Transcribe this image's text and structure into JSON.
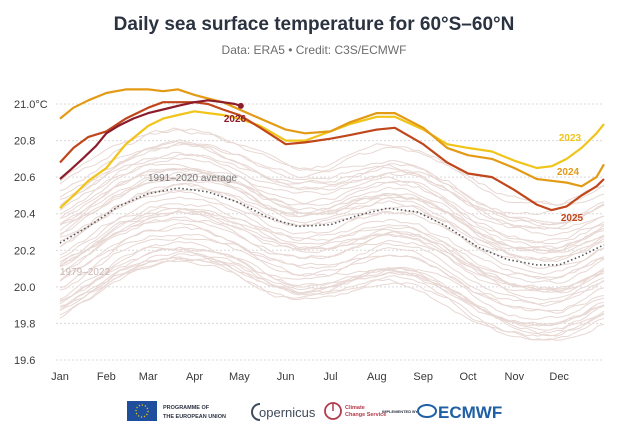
{
  "chart_data": {
    "type": "line",
    "title": "Daily sea surface temperature for 60°S–60°N",
    "subtitle": "Data: ERA5 • Credit: C3S/ECMWF",
    "ylabel": "",
    "xlabel": "",
    "ylim": [
      19.6,
      21.1
    ],
    "xlim": [
      1,
      365
    ],
    "y_ticks": [
      "21.0°C",
      "20.8",
      "20.6",
      "20.4",
      "20.2",
      "20.0",
      "19.8",
      "19.6"
    ],
    "y_tick_values": [
      21.0,
      20.8,
      20.6,
      20.4,
      20.2,
      20.0,
      19.8,
      19.6
    ],
    "x_ticks": [
      "Jan",
      "Feb",
      "Mar",
      "Apr",
      "May",
      "Jun",
      "Jul",
      "Aug",
      "Sep",
      "Oct",
      "Nov",
      "Dec"
    ],
    "x_tick_days": [
      1,
      32,
      60,
      91,
      121,
      152,
      182,
      213,
      244,
      274,
      305,
      335
    ],
    "grid": "horizontal",
    "annotations": {
      "average_label": "1991–2020 average",
      "background_label": "1979–2022"
    },
    "series": [
      {
        "name": "2023",
        "color": "#f0c419",
        "days": [
          1,
          10,
          20,
          32,
          45,
          60,
          70,
          80,
          91,
          100,
          110,
          121,
          135,
          152,
          165,
          182,
          195,
          213,
          225,
          244,
          260,
          274,
          290,
          305,
          320,
          330,
          340,
          350,
          360,
          365
        ],
        "values": [
          20.43,
          20.5,
          20.58,
          20.65,
          20.78,
          20.88,
          20.92,
          20.94,
          20.96,
          20.95,
          20.94,
          20.92,
          20.88,
          20.8,
          20.8,
          20.85,
          20.89,
          20.93,
          20.93,
          20.86,
          20.78,
          20.76,
          20.74,
          20.69,
          20.65,
          20.66,
          20.7,
          20.76,
          20.84,
          20.89
        ]
      },
      {
        "name": "2024",
        "color": "#e39a15",
        "days": [
          1,
          10,
          20,
          32,
          45,
          60,
          70,
          80,
          91,
          100,
          110,
          121,
          135,
          152,
          165,
          182,
          195,
          213,
          225,
          244,
          260,
          274,
          290,
          305,
          320,
          330,
          340,
          350,
          360,
          365
        ],
        "values": [
          20.92,
          20.98,
          21.02,
          21.06,
          21.08,
          21.08,
          21.07,
          21.08,
          21.05,
          21.03,
          21.01,
          20.97,
          20.92,
          20.86,
          20.84,
          20.85,
          20.9,
          20.95,
          20.95,
          20.87,
          20.76,
          20.72,
          20.7,
          20.65,
          20.59,
          20.58,
          20.57,
          20.55,
          20.6,
          20.67
        ]
      },
      {
        "name": "2025",
        "color": "#c0461b",
        "days": [
          1,
          10,
          20,
          32,
          45,
          60,
          70,
          80,
          91,
          100,
          110,
          121,
          135,
          152,
          165,
          182,
          195,
          213,
          225,
          244,
          260,
          274,
          290,
          305,
          320,
          330,
          340,
          350,
          360,
          365
        ],
        "values": [
          20.68,
          20.76,
          20.82,
          20.85,
          20.92,
          20.98,
          21.01,
          21.01,
          21.01,
          21.0,
          20.97,
          20.94,
          20.87,
          20.78,
          20.79,
          20.81,
          20.83,
          20.86,
          20.87,
          20.78,
          20.68,
          20.62,
          20.6,
          20.53,
          20.45,
          20.42,
          20.44,
          20.5,
          20.55,
          20.59
        ]
      },
      {
        "name": "2026",
        "color": "#8c1c2c",
        "days": [
          1,
          8,
          16,
          25,
          32,
          40,
          50,
          60,
          70,
          80,
          91,
          100,
          110,
          118,
          122
        ],
        "values": [
          20.59,
          20.64,
          20.7,
          20.77,
          20.84,
          20.88,
          20.92,
          20.95,
          20.97,
          20.99,
          21.01,
          21.02,
          21.01,
          21.0,
          20.99
        ]
      },
      {
        "name": "1991–2020 average",
        "color": "#555555",
        "days": [
          1,
          20,
          40,
          60,
          80,
          100,
          121,
          140,
          160,
          182,
          200,
          220,
          240,
          260,
          280,
          300,
          320,
          335,
          350,
          365
        ],
        "values": [
          20.24,
          20.33,
          20.44,
          20.51,
          20.54,
          20.52,
          20.46,
          20.38,
          20.33,
          20.34,
          20.39,
          20.43,
          20.41,
          20.33,
          20.22,
          20.15,
          20.12,
          20.12,
          20.17,
          20.23
        ]
      }
    ]
  },
  "logos": {
    "eu_text_1": "PROGRAMME OF",
    "eu_text_2": "THE EUROPEAN UNION",
    "copernicus": "opernicus",
    "c3s_1": "Climate",
    "c3s_2": "Change Service",
    "implemented_by": "IMPLEMENTED BY",
    "ecmwf": "ECMWF"
  }
}
